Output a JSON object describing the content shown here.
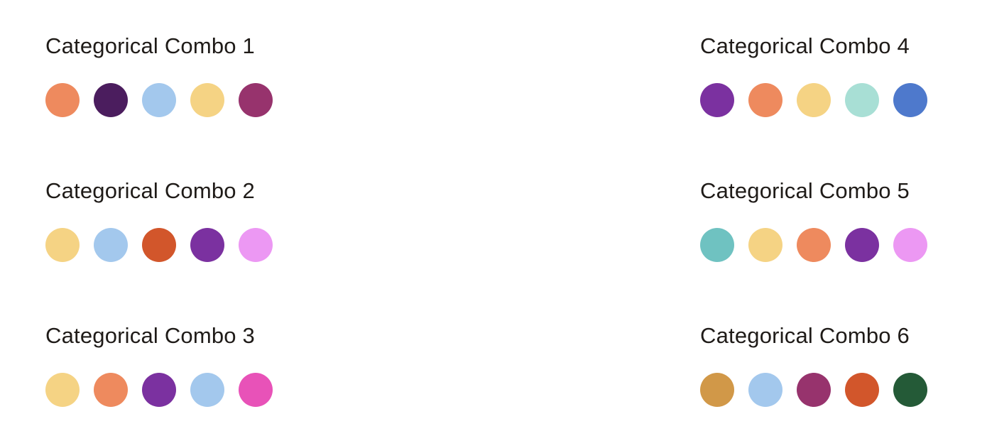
{
  "combos": [
    {
      "title": "Categorical Combo 1",
      "colors": [
        "#ee8a5e",
        "#4b1d5e",
        "#a3c8ed",
        "#f5d384",
        "#97336d"
      ]
    },
    {
      "title": "Categorical Combo 2",
      "colors": [
        "#f5d384",
        "#a3c8ed",
        "#d2562b",
        "#7b31a0",
        "#ec98f3"
      ]
    },
    {
      "title": "Categorical Combo 3",
      "colors": [
        "#f5d384",
        "#ee8a5e",
        "#7b31a0",
        "#a3c8ed",
        "#e852b8"
      ]
    },
    {
      "title": "Categorical Combo 4",
      "colors": [
        "#7b31a0",
        "#ee8a5e",
        "#f5d384",
        "#a8dfd5",
        "#4e79cc"
      ]
    },
    {
      "title": "Categorical Combo 5",
      "colors": [
        "#6fc2c1",
        "#f5d384",
        "#ee8a5e",
        "#7b31a0",
        "#ec98f3"
      ]
    },
    {
      "title": "Categorical Combo 6",
      "colors": [
        "#d19848",
        "#a3c8ed",
        "#97336d",
        "#d2562b",
        "#245a37"
      ]
    }
  ]
}
